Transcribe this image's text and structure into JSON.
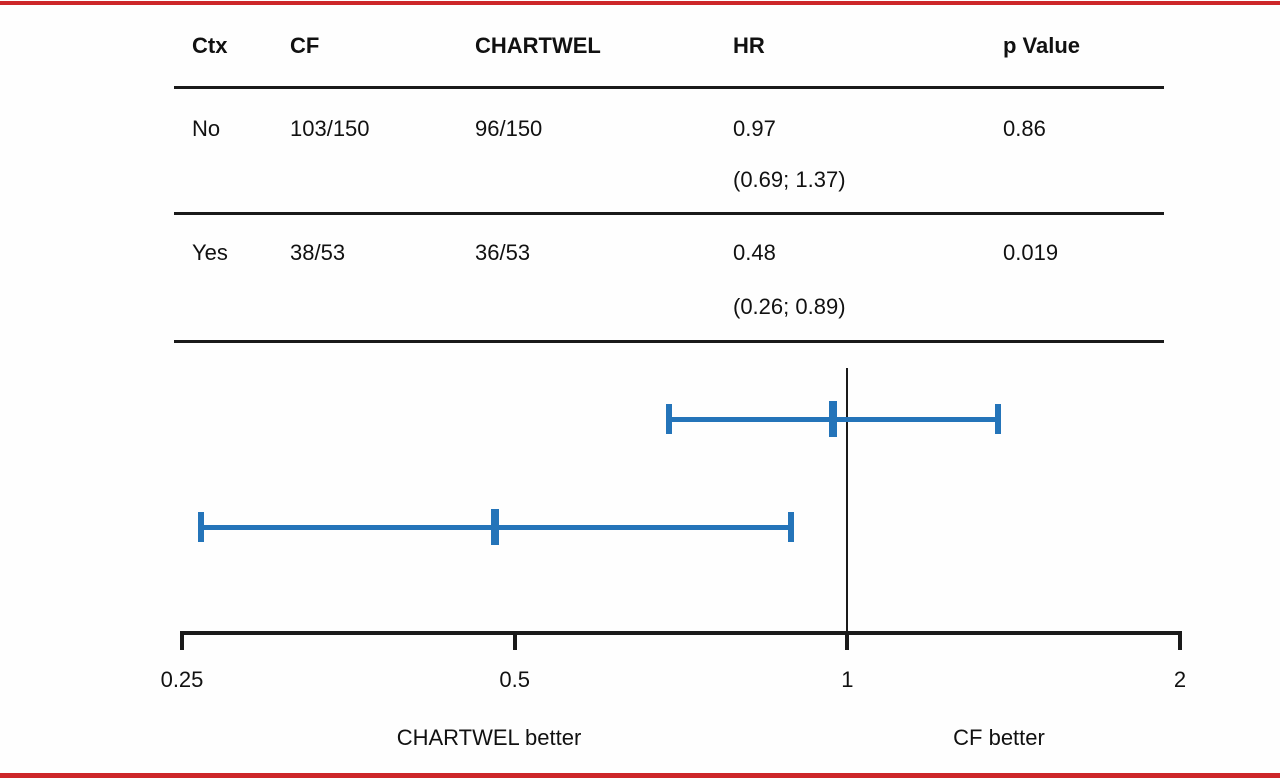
{
  "colors": {
    "accent_red": "#cd2629",
    "bar_blue": "#2474b9",
    "ink": "#111111"
  },
  "table": {
    "headers": [
      "Ctx",
      "CF",
      "CHARTWEL",
      "HR",
      "p Value"
    ],
    "rows": [
      {
        "ctx": "No",
        "cf": "103/150",
        "chartwel": "96/150",
        "hr": "0.97",
        "hr_ci": "(0.69; 1.37)",
        "p": "0.86"
      },
      {
        "ctx": "Yes",
        "cf": "38/53",
        "chartwel": "36/53",
        "hr": "0.48",
        "hr_ci": "(0.26; 0.89)",
        "p": "0.019"
      }
    ]
  },
  "chart_data": {
    "type": "forest",
    "x_scale": "log",
    "x_range": [
      0.25,
      2
    ],
    "x_tick_values": [
      0.25,
      0.5,
      1,
      2
    ],
    "x_tick_labels": [
      "0.25",
      "0.5",
      "1",
      "2"
    ],
    "reference_line": 1,
    "series": [
      {
        "group": "No",
        "hr": 0.97,
        "ci_lower": 0.69,
        "ci_upper": 1.37
      },
      {
        "group": "Yes",
        "hr": 0.48,
        "ci_lower": 0.26,
        "ci_upper": 0.89
      }
    ],
    "direction_labels": {
      "left": "CHARTWEL better",
      "right": "CF better"
    },
    "bar_color": "#2474b9",
    "grid": "off",
    "legend": "none"
  }
}
